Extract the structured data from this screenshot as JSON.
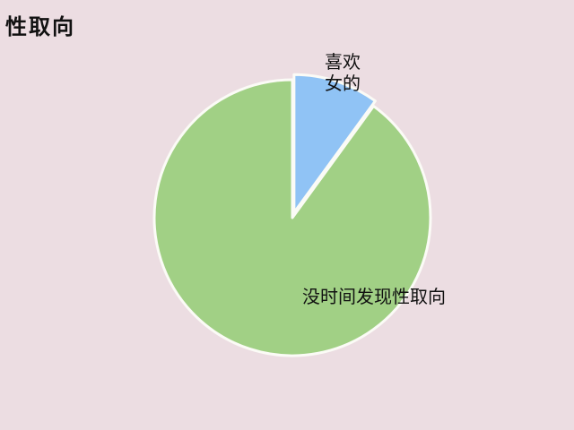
{
  "chart_data": {
    "type": "pie",
    "title": "性取向",
    "slices": [
      {
        "label": "喜欢女的",
        "label_lines": [
          "喜欢",
          "女的"
        ],
        "value": 10,
        "color": "#90c3f5",
        "exploded": true
      },
      {
        "label": "没时间发现性取向",
        "label_lines": [
          "没时间发现性取向"
        ],
        "value": 90,
        "color": "#a1d085",
        "exploded": false
      }
    ],
    "start_angle_deg": 0,
    "direction": "clockwise",
    "legend": "none"
  }
}
